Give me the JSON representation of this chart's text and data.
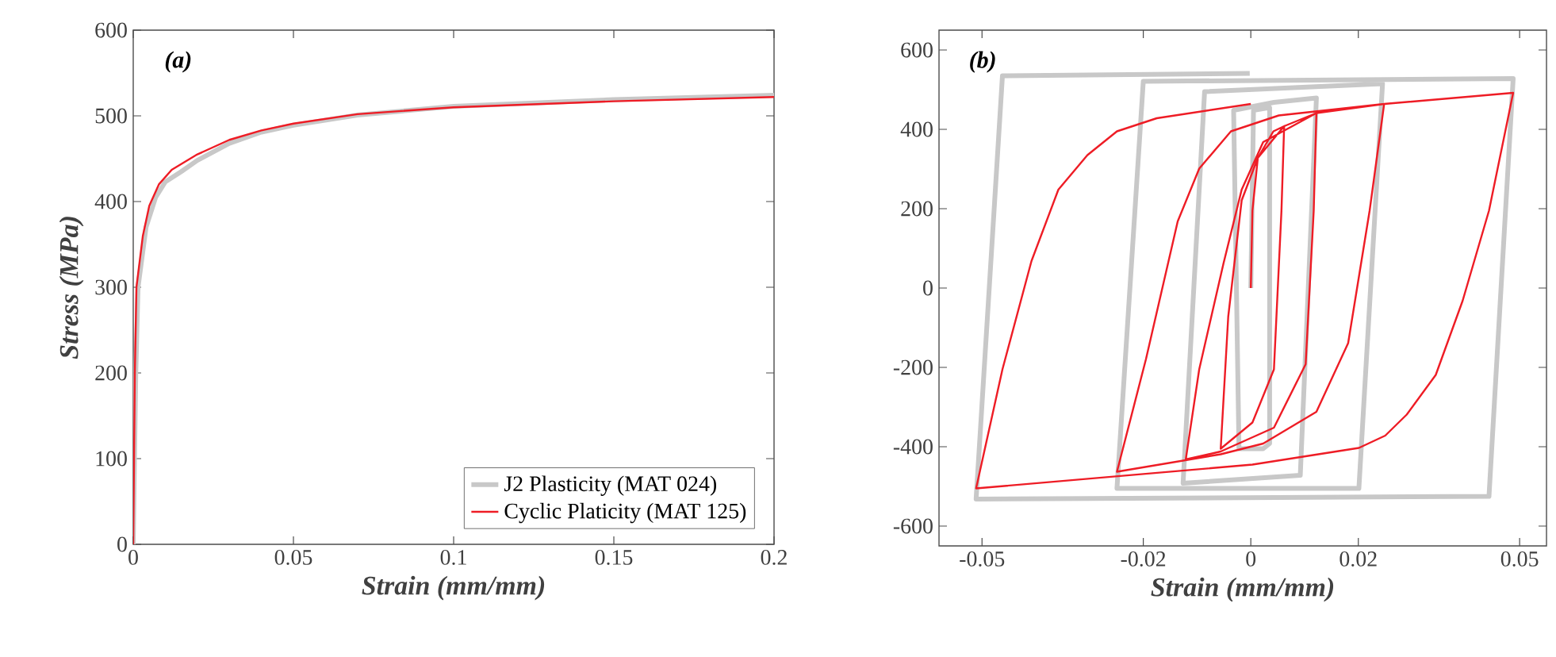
{
  "chart_data": [
    {
      "type": "line",
      "xlabel": "Strain (mm/mm)",
      "ylabel": "Stress (MPa)",
      "annotations": [
        "(a)"
      ],
      "xlim": [
        0,
        0.2
      ],
      "ylim": [
        0,
        600
      ],
      "xticks": [
        0,
        0.05,
        0.1,
        0.15,
        0.2
      ],
      "yticks": [
        0,
        100,
        200,
        300,
        400,
        500,
        600
      ],
      "grid": false,
      "legend": "bottom right",
      "marker": "none",
      "line_style": "solid",
      "series": [
        {
          "name": "J2 Plasticity (MAT 024)",
          "color": "#c8c8c8",
          "x": [
            0,
            0.0008,
            0.0015,
            0.004,
            0.007,
            0.01,
            0.015,
            0.02,
            0.03,
            0.04,
            0.05,
            0.07,
            0.1,
            0.15,
            0.2
          ],
          "values": [
            0,
            200,
            300,
            370,
            405,
            423,
            435,
            448,
            468,
            481,
            489,
            501,
            511,
            519,
            524
          ]
        },
        {
          "name": "Cyclic Platicity (MAT 125)",
          "color": "#ee1c25",
          "x": [
            0,
            0.0005,
            0.001,
            0.003,
            0.005,
            0.008,
            0.012,
            0.02,
            0.03,
            0.04,
            0.05,
            0.07,
            0.1,
            0.15,
            0.2
          ],
          "values": [
            0,
            200,
            300,
            360,
            395,
            420,
            437,
            455,
            472,
            483,
            491,
            502,
            510,
            517,
            522
          ]
        }
      ]
    },
    {
      "type": "line",
      "xlabel": "Strain (mm/mm)",
      "annotations": [
        "(b)"
      ],
      "xlim": [
        -0.058,
        0.055
      ],
      "ylim": [
        -650,
        650
      ],
      "xticks": [
        -0.05,
        -0.02,
        0,
        0.02,
        0.05
      ],
      "yticks": [
        -600,
        -400,
        -200,
        0,
        200,
        400,
        600
      ],
      "grid": false,
      "legend": false,
      "marker": "none",
      "line_style": "solid",
      "series": [
        {
          "color": "#c8c8c8",
          "x": [
            0,
            0.0005,
            0.0035,
            0.0035,
            0.0023,
            -0.0022,
            -0.0032,
            0.0043,
            0.0122,
            0.0092,
            -0.0126,
            -0.0086,
            0.0245,
            0.0201,
            -0.0249,
            -0.02,
            0.0488,
            0.0443,
            -0.0511,
            -0.0462,
            -0.0002
          ],
          "values": [
            0,
            448,
            455,
            -392,
            -405,
            -405,
            448,
            468,
            479,
            -472,
            -492,
            495,
            515,
            -505,
            -505,
            521,
            528,
            -525,
            -532,
            535,
            541
          ]
        },
        {
          "color": "#ee1c25",
          "x": [
            0,
            0.0003,
            0.0013,
            0.0042,
            0.0062,
            0.0057,
            0.0043,
            0.0003,
            -0.0056,
            -0.0042,
            -0.0017,
            0.0013,
            0.0062,
            0.0122,
            0.0117,
            0.0102,
            0.0043,
            -0.0056,
            -0.0121,
            -0.0096,
            -0.0051,
            -0.0017,
            0.0023,
            0.0122,
            0.0248,
            0.0221,
            0.0181,
            0.0122,
            0.0023,
            -0.0056,
            -0.0249,
            -0.0195,
            -0.0136,
            -0.0096,
            -0.0037,
            0.0052,
            0.0248,
            0.0488,
            0.0443,
            0.0394,
            0.0344,
            0.029,
            0.025,
            0.0201,
            0.0003,
            -0.0511,
            -0.0462,
            -0.0408,
            -0.0358,
            -0.0304,
            -0.0249,
            -0.0175,
            0
          ],
          "values": [
            0,
            195,
            328,
            395,
            408,
            195,
            -205,
            -339,
            -405,
            -72,
            221,
            328,
            408,
            441,
            195,
            -192,
            -352,
            -412,
            -432,
            -205,
            61,
            248,
            368,
            441,
            464,
            195,
            -139,
            -312,
            -392,
            -419,
            -463,
            -179,
            168,
            301,
            395,
            435,
            464,
            492,
            195,
            -32,
            -219,
            -319,
            -372,
            -403,
            -445,
            -505,
            -205,
            68,
            248,
            335,
            395,
            428,
            464
          ]
        }
      ]
    }
  ]
}
